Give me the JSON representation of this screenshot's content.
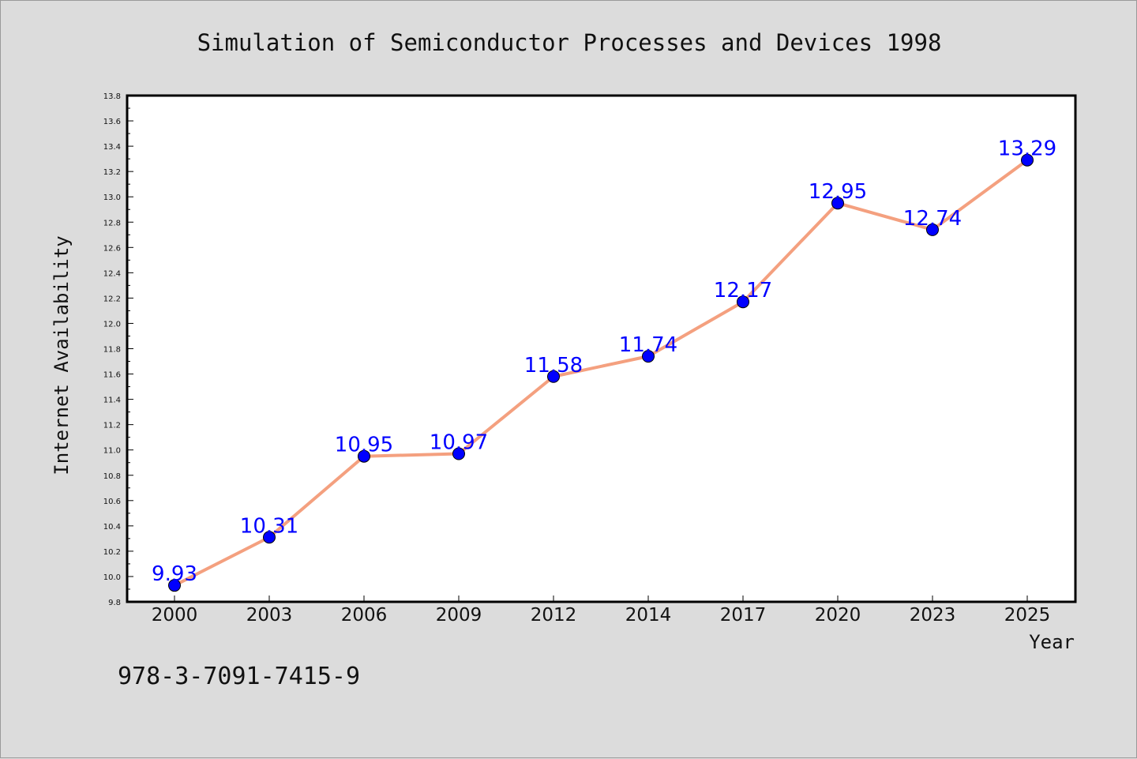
{
  "chart_data": {
    "type": "line",
    "title": "Simulation of Semiconductor Processes and Devices 1998",
    "xlabel": "Year",
    "ylabel": "Internet Availability",
    "categories": [
      "2000",
      "2003",
      "2006",
      "2009",
      "2012",
      "2014",
      "2017",
      "2020",
      "2023",
      "2025"
    ],
    "series": [
      {
        "values": [
          9.93,
          10.31,
          10.95,
          10.97,
          11.58,
          11.74,
          12.17,
          12.95,
          12.74,
          13.29
        ],
        "labels": [
          "9.93",
          "10.31",
          "10.95",
          "10.97",
          "11.58",
          "11.74",
          "12.17",
          "12.95",
          "12.74",
          "13.29"
        ],
        "line_color": "#f4a07f",
        "marker_color": "#0000ff"
      }
    ],
    "ylim": [
      9.8,
      13.8
    ],
    "yticks": [
      "9.8",
      "10.0",
      "10.2",
      "10.4",
      "10.6",
      "10.8",
      "11.0",
      "11.2",
      "11.4",
      "11.6",
      "11.8",
      "12.0",
      "12.2",
      "12.4",
      "12.6",
      "12.8",
      "13.0",
      "13.2",
      "13.4",
      "13.6",
      "13.8"
    ],
    "grid": false,
    "data_label_color": "#0000ff",
    "footer_text": "978-3-7091-7415-9"
  }
}
